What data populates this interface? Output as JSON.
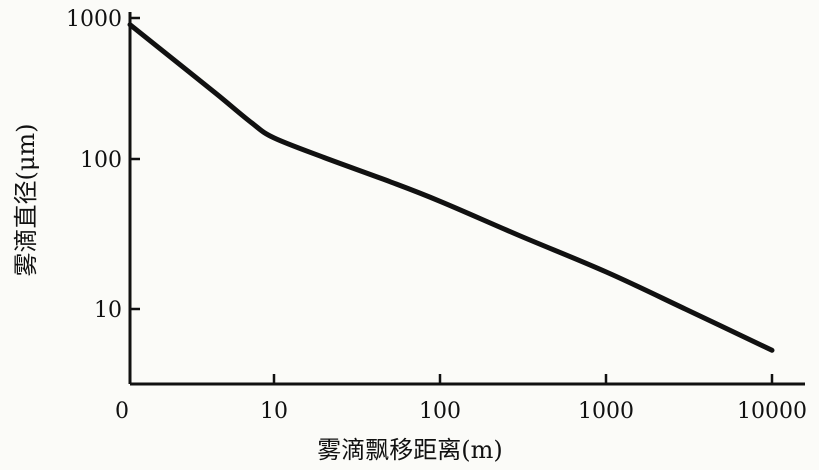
{
  "chart_data": {
    "type": "line",
    "title": "",
    "xlabel": "雾滴飘移距离(m)",
    "ylabel": "雾滴直径(μm)",
    "x_scale": "log",
    "y_scale": "log",
    "x_ticks": [
      "0",
      "10",
      "100",
      "1000",
      "10000"
    ],
    "y_ticks": [
      "1000",
      "100",
      "10"
    ],
    "grid": false,
    "series": [
      {
        "x": [
          1,
          2,
          4,
          7,
          10,
          20,
          50,
          100,
          300,
          1000,
          3000,
          10000
        ],
        "y": [
          900,
          520,
          300,
          190,
          150,
          110,
          75,
          55,
          32,
          18,
          10,
          5.2
        ]
      }
    ]
  }
}
